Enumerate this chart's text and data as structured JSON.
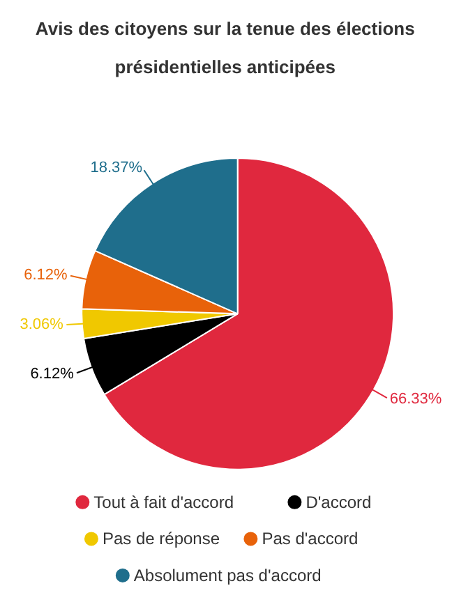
{
  "chart_data": {
    "type": "pie",
    "title": "Avis des citoyens sur la tenue des élections présidentielles anticipées",
    "categories": [
      "Tout à fait d'accord",
      "D'accord",
      "Pas de réponse",
      "Pas d'accord",
      "Absolument pas d'accord"
    ],
    "values": [
      66.33,
      6.12,
      3.06,
      6.12,
      18.37
    ],
    "colors": [
      "#e0283e",
      "#000000",
      "#f0c800",
      "#e8620a",
      "#1f6e8c"
    ],
    "value_labels": [
      "66.33%",
      "6.12%",
      "3.06%",
      "6.12%",
      "18.37%"
    ],
    "legend": "bottom"
  }
}
